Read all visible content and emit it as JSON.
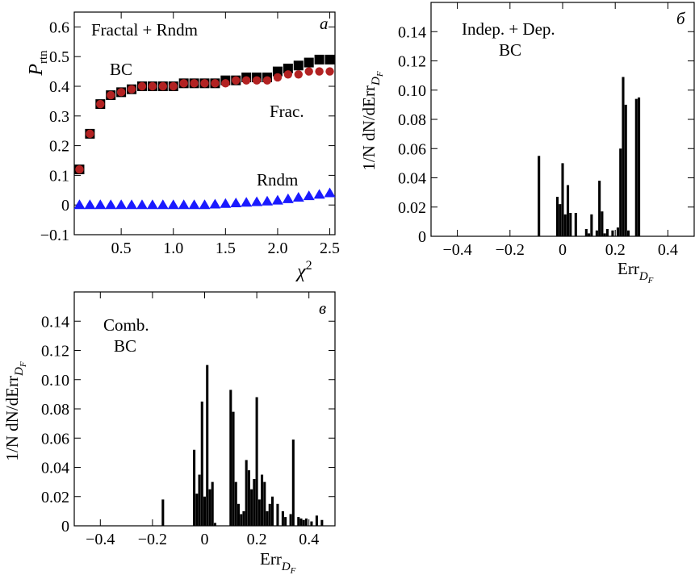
{
  "chart_data": [
    {
      "panel": "a",
      "type": "scatter",
      "annotation_title": "Fractal + Rndm",
      "panel_letter": "а",
      "xlabel": "χ",
      "xlabel_sup": "2",
      "ylabel": "P",
      "ylabel_sub": "rtn",
      "xlim": [
        0.05,
        2.55
      ],
      "ylim": [
        -0.1,
        0.65
      ],
      "xticks": [
        0.5,
        1.0,
        1.5,
        2.0,
        2.5
      ],
      "xtick_labels": [
        "0.5",
        "1.0",
        "1.5",
        "2.0",
        "2.5"
      ],
      "yticks": [
        -0.1,
        0,
        0.1,
        0.2,
        0.3,
        0.4,
        0.5,
        0.6
      ],
      "ytick_labels": [
        "−0.1",
        "0",
        "0.1",
        "0.2",
        "0.3",
        "0.4",
        "0.5",
        "0.6"
      ],
      "series": [
        {
          "name": "BC",
          "marker": "square",
          "color": "#000000",
          "x": [
            0.1,
            0.2,
            0.3,
            0.4,
            0.5,
            0.6,
            0.7,
            0.8,
            0.9,
            1.0,
            1.1,
            1.2,
            1.3,
            1.4,
            1.5,
            1.6,
            1.7,
            1.8,
            1.9,
            2.0,
            2.1,
            2.2,
            2.3,
            2.4,
            2.5
          ],
          "y": [
            0.12,
            0.24,
            0.34,
            0.37,
            0.38,
            0.39,
            0.4,
            0.4,
            0.4,
            0.4,
            0.41,
            0.41,
            0.41,
            0.41,
            0.42,
            0.42,
            0.43,
            0.43,
            0.43,
            0.45,
            0.46,
            0.47,
            0.48,
            0.49,
            0.49
          ]
        },
        {
          "name": "Frac.",
          "marker": "circle",
          "color": "#b22222",
          "x": [
            0.1,
            0.2,
            0.3,
            0.4,
            0.5,
            0.6,
            0.7,
            0.8,
            0.9,
            1.0,
            1.1,
            1.2,
            1.3,
            1.4,
            1.5,
            1.6,
            1.7,
            1.8,
            1.9,
            2.0,
            2.1,
            2.2,
            2.3,
            2.4,
            2.5
          ],
          "y": [
            0.12,
            0.24,
            0.34,
            0.37,
            0.38,
            0.39,
            0.4,
            0.4,
            0.4,
            0.4,
            0.41,
            0.41,
            0.41,
            0.41,
            0.41,
            0.42,
            0.42,
            0.42,
            0.42,
            0.43,
            0.44,
            0.44,
            0.45,
            0.45,
            0.45
          ]
        },
        {
          "name": "Rndm",
          "marker": "triangle",
          "color": "#1a1aff",
          "x": [
            0.1,
            0.2,
            0.3,
            0.4,
            0.5,
            0.6,
            0.7,
            0.8,
            0.9,
            1.0,
            1.1,
            1.2,
            1.3,
            1.4,
            1.5,
            1.6,
            1.7,
            1.8,
            1.9,
            2.0,
            2.1,
            2.2,
            2.3,
            2.4,
            2.5
          ],
          "y": [
            0,
            0,
            0,
            0,
            0,
            0,
            0,
            0,
            0,
            0,
            0,
            0,
            0,
            0.002,
            0.004,
            0.006,
            0.008,
            0.01,
            0.012,
            0.015,
            0.02,
            0.025,
            0.03,
            0.035,
            0.04
          ]
        }
      ],
      "labels": [
        "BC",
        "Frac.",
        "Rndm"
      ]
    },
    {
      "panel": "b",
      "type": "bar",
      "annotation_lines": [
        "Indep. + Dep.",
        "BC"
      ],
      "panel_letter": "б",
      "xlabel": "Err",
      "xlabel_sub": "D",
      "xlabel_subsub": "F",
      "ylabel": "1/N dN/dErr",
      "xlim": [
        -0.5,
        0.5
      ],
      "ylim": [
        0,
        0.16
      ],
      "xticks": [
        -0.4,
        -0.2,
        0,
        0.2,
        0.4
      ],
      "xtick_labels": [
        "−0.4",
        "−0.2",
        "0",
        "0.2",
        "0.4"
      ],
      "yticks": [
        0,
        0.02,
        0.04,
        0.06,
        0.08,
        0.1,
        0.12,
        0.14
      ],
      "ytick_labels": [
        "0",
        "0.02",
        "0.04",
        "0.06",
        "0.08",
        "0.10",
        "0.12",
        "0.14"
      ],
      "x": [
        -0.09,
        -0.02,
        -0.01,
        0.0,
        0.01,
        0.02,
        0.03,
        0.05,
        0.09,
        0.1,
        0.11,
        0.13,
        0.14,
        0.15,
        0.16,
        0.17,
        0.19,
        0.21,
        0.22,
        0.23,
        0.24,
        0.25,
        0.28,
        0.29
      ],
      "values": [
        0.055,
        0.027,
        0.022,
        0.05,
        0.015,
        0.035,
        0.016,
        0.016,
        0.005,
        0.002,
        0.015,
        0.004,
        0.038,
        0.017,
        0.002,
        0.005,
        0.004,
        0.006,
        0.06,
        0.109,
        0.09,
        0.004,
        0.094,
        0.095
      ]
    },
    {
      "panel": "c",
      "type": "bar",
      "annotation_lines": [
        "Comb.",
        "BC"
      ],
      "panel_letter": "в",
      "xlabel": "Err",
      "xlabel_sub": "D",
      "xlabel_subsub": "F",
      "ylabel": "1/N dN/dErr",
      "xlim": [
        -0.5,
        0.5
      ],
      "ylim": [
        0,
        0.16
      ],
      "xticks": [
        -0.4,
        -0.2,
        0,
        0.2,
        0.4
      ],
      "xtick_labels": [
        "−0.4",
        "−0.2",
        "0",
        "0.2",
        "0.4"
      ],
      "yticks": [
        0,
        0.02,
        0.04,
        0.06,
        0.08,
        0.1,
        0.12,
        0.14
      ],
      "ytick_labels": [
        "0",
        "0.02",
        "0.04",
        "0.06",
        "0.08",
        "0.10",
        "0.12",
        "0.14"
      ],
      "x": [
        -0.16,
        -0.04,
        -0.03,
        -0.02,
        -0.01,
        0.0,
        0.01,
        0.02,
        0.03,
        0.04,
        0.1,
        0.11,
        0.12,
        0.13,
        0.14,
        0.15,
        0.16,
        0.17,
        0.18,
        0.19,
        0.2,
        0.21,
        0.22,
        0.23,
        0.24,
        0.25,
        0.26,
        0.28,
        0.3,
        0.31,
        0.33,
        0.34,
        0.36,
        0.37,
        0.38,
        0.39,
        0.41,
        0.43,
        0.45
      ],
      "values": [
        0.018,
        0.052,
        0.022,
        0.035,
        0.085,
        0.02,
        0.11,
        0.025,
        0.03,
        0.002,
        0.093,
        0.078,
        0.03,
        0.015,
        0.008,
        0.01,
        0.045,
        0.038,
        0.025,
        0.032,
        0.088,
        0.018,
        0.035,
        0.03,
        0.01,
        0.015,
        0.02,
        0.015,
        0.01,
        0.006,
        0.008,
        0.059,
        0.006,
        0.005,
        0.004,
        0.005,
        0.003,
        0.007,
        0.004
      ]
    }
  ]
}
